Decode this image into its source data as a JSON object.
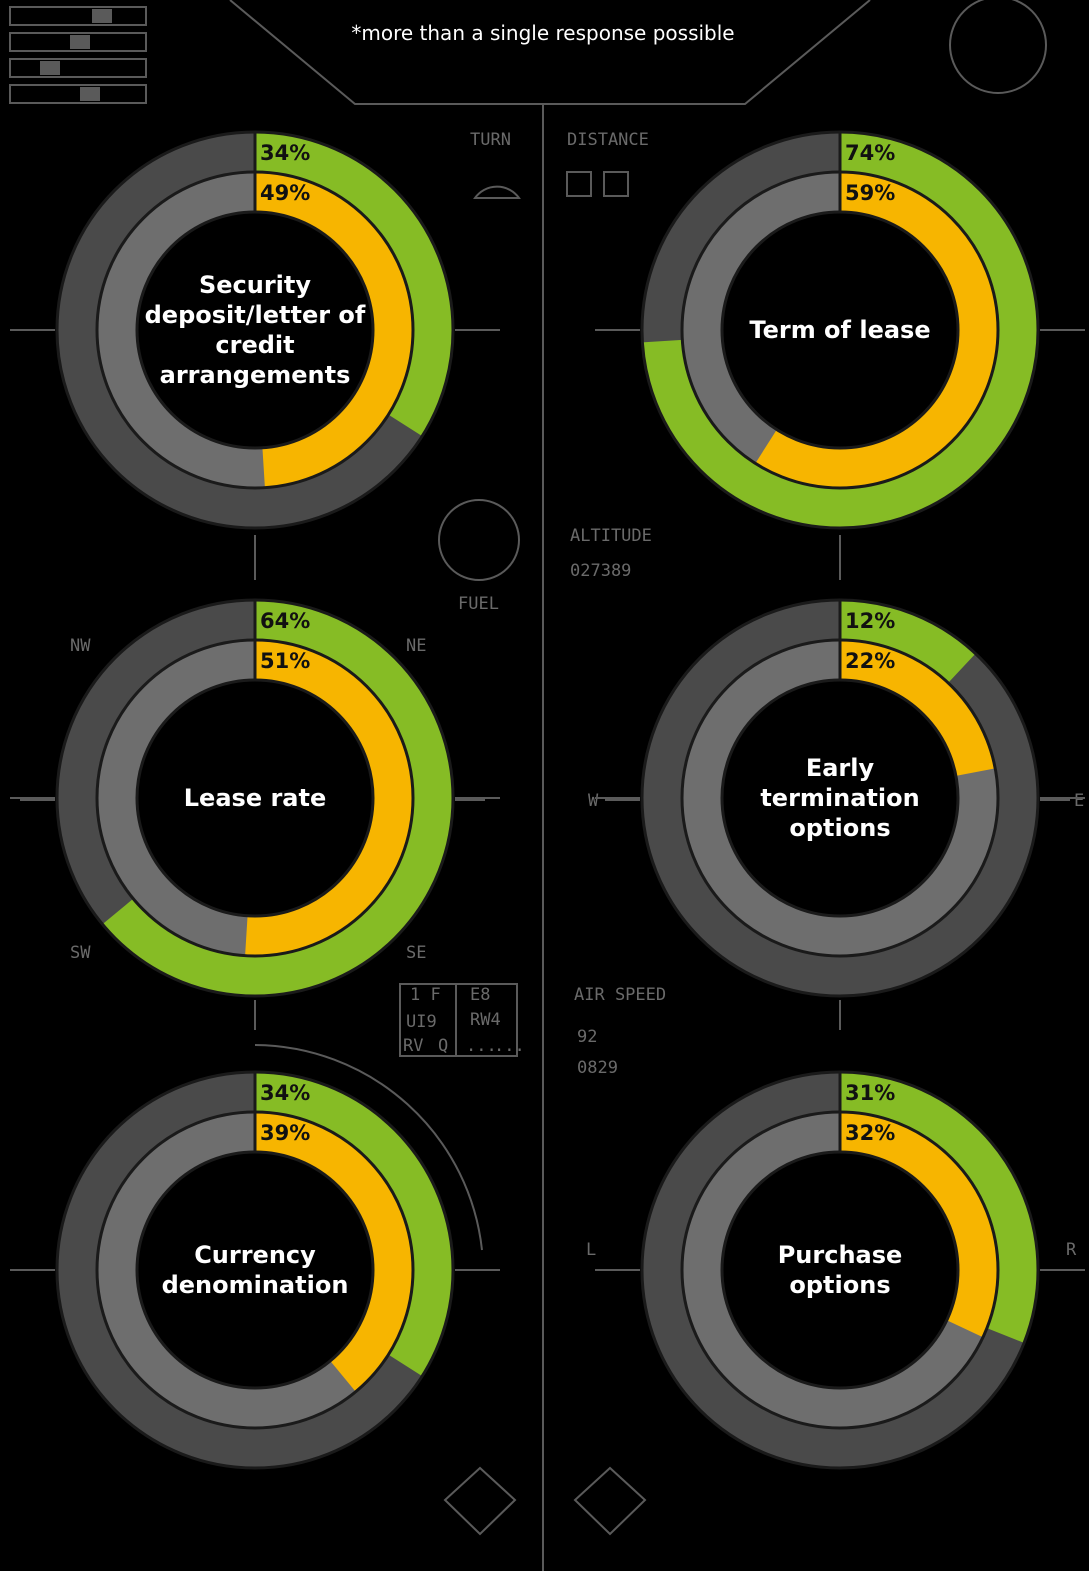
{
  "note": "*more than a single response possible",
  "hud": [
    "TURN",
    "DISTANCE",
    "FUEL",
    "ALTITUDE",
    "027389",
    "NW",
    "NE",
    "SW",
    "SE",
    "W",
    "E",
    "AIR SPEED",
    "92",
    "0829",
    "L",
    "R",
    "1 F",
    "E8",
    "UI9",
    "RW4",
    "RV",
    "Q",
    "...",
    "..."
  ],
  "chart_data": [
    {
      "type": "donut",
      "title": "Security deposit/letter of credit arrangements",
      "series": [
        {
          "color": "#86bc25",
          "values": [
            34
          ],
          "value_labels": [
            "34%"
          ]
        },
        {
          "color": "#f7b500",
          "values": [
            49
          ],
          "value_labels": [
            "49%"
          ]
        }
      ]
    },
    {
      "type": "donut",
      "title": "Term of lease",
      "series": [
        {
          "color": "#86bc25",
          "values": [
            74
          ],
          "value_labels": [
            "74%"
          ]
        },
        {
          "color": "#f7b500",
          "values": [
            59
          ],
          "value_labels": [
            "59%"
          ]
        }
      ]
    },
    {
      "type": "donut",
      "title": "Lease rate",
      "series": [
        {
          "color": "#86bc25",
          "values": [
            64
          ],
          "value_labels": [
            "64%"
          ]
        },
        {
          "color": "#f7b500",
          "values": [
            51
          ],
          "value_labels": [
            "51%"
          ]
        }
      ]
    },
    {
      "type": "donut",
      "title": "Early termination options",
      "series": [
        {
          "color": "#86bc25",
          "values": [
            12
          ],
          "value_labels": [
            "12%"
          ]
        },
        {
          "color": "#f7b500",
          "values": [
            22
          ],
          "value_labels": [
            "22%"
          ]
        }
      ]
    },
    {
      "type": "donut",
      "title": "Currency denomination",
      "series": [
        {
          "color": "#86bc25",
          "values": [
            34
          ],
          "value_labels": [
            "34%"
          ]
        },
        {
          "color": "#f7b500",
          "values": [
            39
          ],
          "value_labels": [
            "39%"
          ]
        }
      ]
    },
    {
      "type": "donut",
      "title": "Purchase options",
      "series": [
        {
          "color": "#86bc25",
          "values": [
            31
          ],
          "value_labels": [
            "31%"
          ]
        },
        {
          "color": "#f7b500",
          "values": [
            32
          ],
          "value_labels": [
            "32%"
          ]
        }
      ]
    }
  ]
}
